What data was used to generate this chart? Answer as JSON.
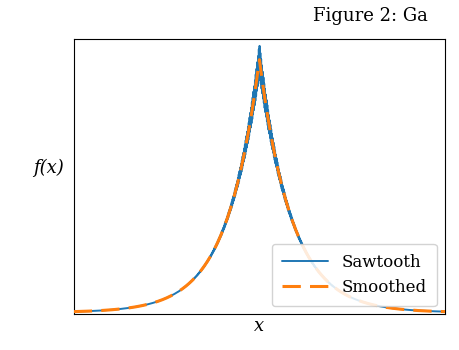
{
  "title": "Figure 2: Ga",
  "xlabel": "x",
  "ylabel": "f(x)",
  "smooth_color": "#ff7f0e",
  "sawtooth_color": "#1f77b4",
  "smooth_linestyle": "--",
  "smooth_linewidth": 2.2,
  "sawtooth_linewidth": 1.4,
  "legend_labels": [
    "Sawtooth",
    "Smoothed"
  ],
  "x_range": [
    -4,
    4
  ],
  "num_points": 5000,
  "sawtooth_freq": 60,
  "sawtooth_amplitude_scale": 0.06,
  "laplace_scale": 0.7,
  "cutoff": 1.8,
  "background_color": "#ffffff",
  "title_fontsize": 13,
  "axis_label_fontsize": 13,
  "legend_fontsize": 12
}
